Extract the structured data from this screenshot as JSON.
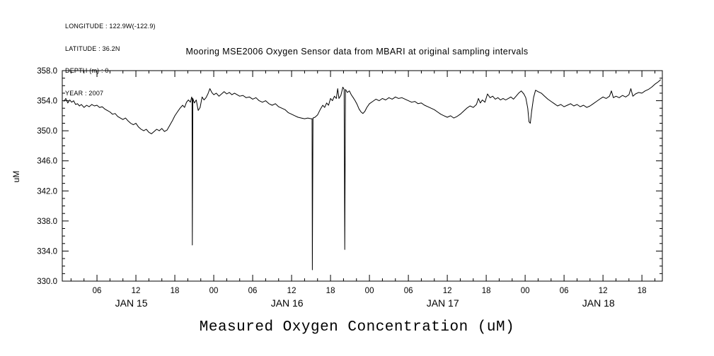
{
  "meta": {
    "longitude": "LONGITUDE : 122.9W(-122.9)",
    "latitude": "LATITUDE : 36.2N",
    "depth": "DEPTH (m) : 0",
    "year": "YEAR : 2007"
  },
  "chart_data": {
    "type": "line",
    "title": "Mooring MSE2006 Oxygen Sensor data from MBARI at original sampling intervals",
    "xlabel": "Measured Oxygen Concentration (uM)",
    "ylabel": "uM",
    "ylim": [
      330.0,
      358.0
    ],
    "y_ticks": [
      330.0,
      334.0,
      338.0,
      342.0,
      346.0,
      350.0,
      354.0,
      358.0
    ],
    "y_tick_labels": [
      "330.0",
      "334.0",
      "338.0",
      "342.0",
      "346.0",
      "350.0",
      "354.0",
      "358.0"
    ],
    "y_minor_step": 1,
    "x_unit": "hours since JAN 15 00:00 (2007)",
    "xlim_hours": [
      0.65,
      93.15
    ],
    "x_major_ticks_hours": [
      6,
      12,
      18,
      24,
      30,
      36,
      42,
      48,
      54,
      60,
      66,
      72,
      78,
      84,
      90
    ],
    "x_major_tick_labels": [
      "06",
      "12",
      "18",
      "00",
      "06",
      "12",
      "18",
      "00",
      "06",
      "12",
      "18",
      "00",
      "06",
      "12",
      "18"
    ],
    "x_minor_step_hours": 2,
    "day_labels": [
      {
        "label": "JAN 15",
        "hour": 11.3
      },
      {
        "label": "JAN 16",
        "hour": 35.3
      },
      {
        "label": "JAN 17",
        "hour": 59.3
      },
      {
        "label": "JAN 18",
        "hour": 83.3
      }
    ],
    "grid": false,
    "legend": "none",
    "line_color": "#000000",
    "background_color": "#ffffff",
    "series": [
      {
        "name": "oxygen-concentration-uM",
        "points": [
          [
            0.9,
            353.9
          ],
          [
            1.2,
            354.3
          ],
          [
            1.5,
            353.7
          ],
          [
            1.8,
            354.1
          ],
          [
            2.1,
            353.8
          ],
          [
            2.4,
            354.0
          ],
          [
            2.7,
            353.5
          ],
          [
            3.0,
            353.6
          ],
          [
            3.3,
            353.3
          ],
          [
            3.6,
            353.5
          ],
          [
            4.0,
            353.1
          ],
          [
            4.4,
            353.4
          ],
          [
            4.8,
            353.2
          ],
          [
            5.2,
            353.5
          ],
          [
            5.6,
            353.3
          ],
          [
            6.0,
            353.4
          ],
          [
            6.4,
            353.1
          ],
          [
            6.8,
            353.2
          ],
          [
            7.2,
            352.9
          ],
          [
            7.6,
            352.7
          ],
          [
            8.0,
            352.5
          ],
          [
            8.4,
            352.2
          ],
          [
            8.8,
            352.3
          ],
          [
            9.2,
            351.9
          ],
          [
            9.6,
            351.7
          ],
          [
            10.0,
            351.5
          ],
          [
            10.4,
            351.7
          ],
          [
            10.8,
            351.3
          ],
          [
            11.2,
            351.0
          ],
          [
            11.6,
            350.8
          ],
          [
            12.0,
            351.0
          ],
          [
            12.4,
            350.5
          ],
          [
            12.8,
            350.2
          ],
          [
            13.2,
            350.0
          ],
          [
            13.6,
            350.2
          ],
          [
            14.0,
            349.8
          ],
          [
            14.4,
            349.6
          ],
          [
            14.8,
            349.9
          ],
          [
            15.2,
            350.2
          ],
          [
            15.6,
            350.0
          ],
          [
            16.0,
            350.3
          ],
          [
            16.4,
            349.9
          ],
          [
            16.8,
            350.1
          ],
          [
            17.2,
            350.7
          ],
          [
            17.6,
            351.3
          ],
          [
            18.0,
            352.0
          ],
          [
            18.4,
            352.5
          ],
          [
            18.8,
            353.0
          ],
          [
            19.2,
            353.4
          ],
          [
            19.5,
            353.1
          ],
          [
            19.8,
            353.8
          ],
          [
            20.1,
            354.1
          ],
          [
            20.4,
            353.8
          ],
          [
            20.6,
            354.5
          ],
          [
            20.65,
            354.3
          ],
          [
            20.7,
            334.8
          ],
          [
            20.78,
            354.3
          ],
          [
            21.0,
            353.7
          ],
          [
            21.3,
            354.1
          ],
          [
            21.6,
            352.7
          ],
          [
            21.9,
            353.1
          ],
          [
            22.2,
            354.5
          ],
          [
            22.5,
            354.1
          ],
          [
            22.8,
            354.4
          ],
          [
            23.1,
            354.9
          ],
          [
            23.4,
            355.6
          ],
          [
            23.7,
            355.1
          ],
          [
            24.0,
            354.8
          ],
          [
            24.4,
            355.0
          ],
          [
            24.8,
            354.6
          ],
          [
            25.2,
            354.9
          ],
          [
            25.6,
            355.2
          ],
          [
            26.0,
            354.9
          ],
          [
            26.4,
            355.1
          ],
          [
            26.8,
            354.8
          ],
          [
            27.2,
            355.0
          ],
          [
            27.6,
            354.8
          ],
          [
            28.0,
            354.6
          ],
          [
            28.5,
            354.7
          ],
          [
            29.0,
            354.4
          ],
          [
            29.5,
            354.5
          ],
          [
            30.0,
            354.2
          ],
          [
            30.5,
            354.4
          ],
          [
            31.0,
            354.0
          ],
          [
            31.5,
            353.8
          ],
          [
            32.0,
            354.0
          ],
          [
            32.5,
            353.6
          ],
          [
            33.0,
            353.4
          ],
          [
            33.5,
            353.6
          ],
          [
            34.0,
            353.2
          ],
          [
            34.5,
            353.0
          ],
          [
            35.0,
            352.8
          ],
          [
            35.5,
            352.4
          ],
          [
            36.0,
            352.2
          ],
          [
            36.5,
            352.0
          ],
          [
            37.0,
            351.8
          ],
          [
            37.5,
            351.7
          ],
          [
            38.0,
            351.6
          ],
          [
            38.5,
            351.7
          ],
          [
            39.0,
            351.6
          ],
          [
            39.15,
            351.6
          ],
          [
            39.2,
            331.5
          ],
          [
            39.3,
            351.7
          ],
          [
            39.6,
            351.8
          ],
          [
            40.0,
            352.1
          ],
          [
            40.4,
            352.8
          ],
          [
            40.8,
            353.4
          ],
          [
            41.1,
            353.1
          ],
          [
            41.4,
            353.7
          ],
          [
            41.7,
            353.4
          ],
          [
            42.0,
            354.3
          ],
          [
            42.3,
            354.0
          ],
          [
            42.6,
            354.6
          ],
          [
            42.9,
            354.3
          ],
          [
            43.1,
            355.6
          ],
          [
            43.3,
            354.3
          ],
          [
            43.6,
            354.7
          ],
          [
            43.9,
            355.8
          ],
          [
            44.1,
            355.5
          ],
          [
            44.2,
            334.2
          ],
          [
            44.3,
            355.5
          ],
          [
            44.6,
            355.1
          ],
          [
            44.9,
            355.3
          ],
          [
            45.2,
            354.8
          ],
          [
            45.5,
            354.4
          ],
          [
            45.8,
            354.0
          ],
          [
            46.1,
            353.5
          ],
          [
            46.4,
            352.9
          ],
          [
            46.7,
            352.5
          ],
          [
            47.0,
            352.3
          ],
          [
            47.3,
            352.6
          ],
          [
            47.6,
            353.1
          ],
          [
            48.0,
            353.6
          ],
          [
            48.5,
            353.9
          ],
          [
            49.0,
            354.2
          ],
          [
            49.5,
            354.0
          ],
          [
            50.0,
            354.3
          ],
          [
            50.5,
            354.1
          ],
          [
            51.0,
            354.4
          ],
          [
            51.5,
            354.2
          ],
          [
            52.0,
            354.5
          ],
          [
            52.5,
            354.3
          ],
          [
            53.0,
            354.4
          ],
          [
            53.5,
            354.2
          ],
          [
            54.0,
            354.0
          ],
          [
            54.5,
            353.8
          ],
          [
            55.0,
            353.9
          ],
          [
            55.5,
            353.6
          ],
          [
            56.0,
            353.7
          ],
          [
            56.5,
            353.4
          ],
          [
            57.0,
            353.2
          ],
          [
            57.5,
            353.0
          ],
          [
            58.0,
            352.8
          ],
          [
            58.5,
            352.5
          ],
          [
            59.0,
            352.2
          ],
          [
            59.5,
            352.0
          ],
          [
            60.0,
            351.8
          ],
          [
            60.5,
            352.0
          ],
          [
            61.0,
            351.7
          ],
          [
            61.5,
            351.9
          ],
          [
            62.0,
            352.2
          ],
          [
            62.5,
            352.6
          ],
          [
            63.0,
            353.0
          ],
          [
            63.5,
            353.3
          ],
          [
            64.0,
            353.1
          ],
          [
            64.5,
            353.5
          ],
          [
            64.8,
            354.3
          ],
          [
            65.1,
            353.7
          ],
          [
            65.4,
            354.1
          ],
          [
            65.8,
            353.8
          ],
          [
            66.2,
            354.9
          ],
          [
            66.6,
            354.4
          ],
          [
            67.0,
            354.6
          ],
          [
            67.4,
            354.2
          ],
          [
            67.8,
            354.4
          ],
          [
            68.2,
            354.1
          ],
          [
            68.6,
            354.3
          ],
          [
            69.0,
            354.1
          ],
          [
            69.4,
            354.3
          ],
          [
            69.8,
            354.5
          ],
          [
            70.2,
            354.2
          ],
          [
            70.6,
            354.6
          ],
          [
            71.0,
            355.0
          ],
          [
            71.4,
            355.3
          ],
          [
            71.8,
            354.9
          ],
          [
            72.1,
            354.4
          ],
          [
            72.4,
            353.0
          ],
          [
            72.6,
            351.2
          ],
          [
            72.8,
            351.0
          ],
          [
            73.0,
            352.6
          ],
          [
            73.3,
            354.4
          ],
          [
            73.6,
            355.4
          ],
          [
            74.0,
            355.2
          ],
          [
            74.5,
            355.0
          ],
          [
            75.0,
            354.6
          ],
          [
            75.5,
            354.2
          ],
          [
            76.0,
            353.9
          ],
          [
            76.5,
            353.6
          ],
          [
            77.0,
            353.3
          ],
          [
            77.5,
            353.5
          ],
          [
            78.0,
            353.2
          ],
          [
            78.5,
            353.4
          ],
          [
            79.0,
            353.6
          ],
          [
            79.5,
            353.3
          ],
          [
            80.0,
            353.5
          ],
          [
            80.5,
            353.2
          ],
          [
            81.0,
            353.4
          ],
          [
            81.5,
            353.1
          ],
          [
            82.0,
            353.3
          ],
          [
            82.5,
            353.6
          ],
          [
            83.0,
            353.9
          ],
          [
            83.5,
            354.2
          ],
          [
            84.0,
            354.5
          ],
          [
            84.5,
            354.3
          ],
          [
            85.0,
            354.6
          ],
          [
            85.3,
            355.3
          ],
          [
            85.6,
            354.4
          ],
          [
            86.0,
            354.6
          ],
          [
            86.5,
            354.4
          ],
          [
            87.0,
            354.7
          ],
          [
            87.5,
            354.5
          ],
          [
            88.0,
            354.8
          ],
          [
            88.3,
            355.6
          ],
          [
            88.6,
            354.6
          ],
          [
            89.0,
            354.9
          ],
          [
            89.5,
            355.1
          ],
          [
            90.0,
            355.0
          ],
          [
            90.5,
            355.3
          ],
          [
            91.0,
            355.5
          ],
          [
            91.5,
            355.8
          ],
          [
            92.0,
            356.2
          ],
          [
            92.5,
            356.5
          ],
          [
            92.9,
            356.8
          ]
        ]
      }
    ]
  }
}
